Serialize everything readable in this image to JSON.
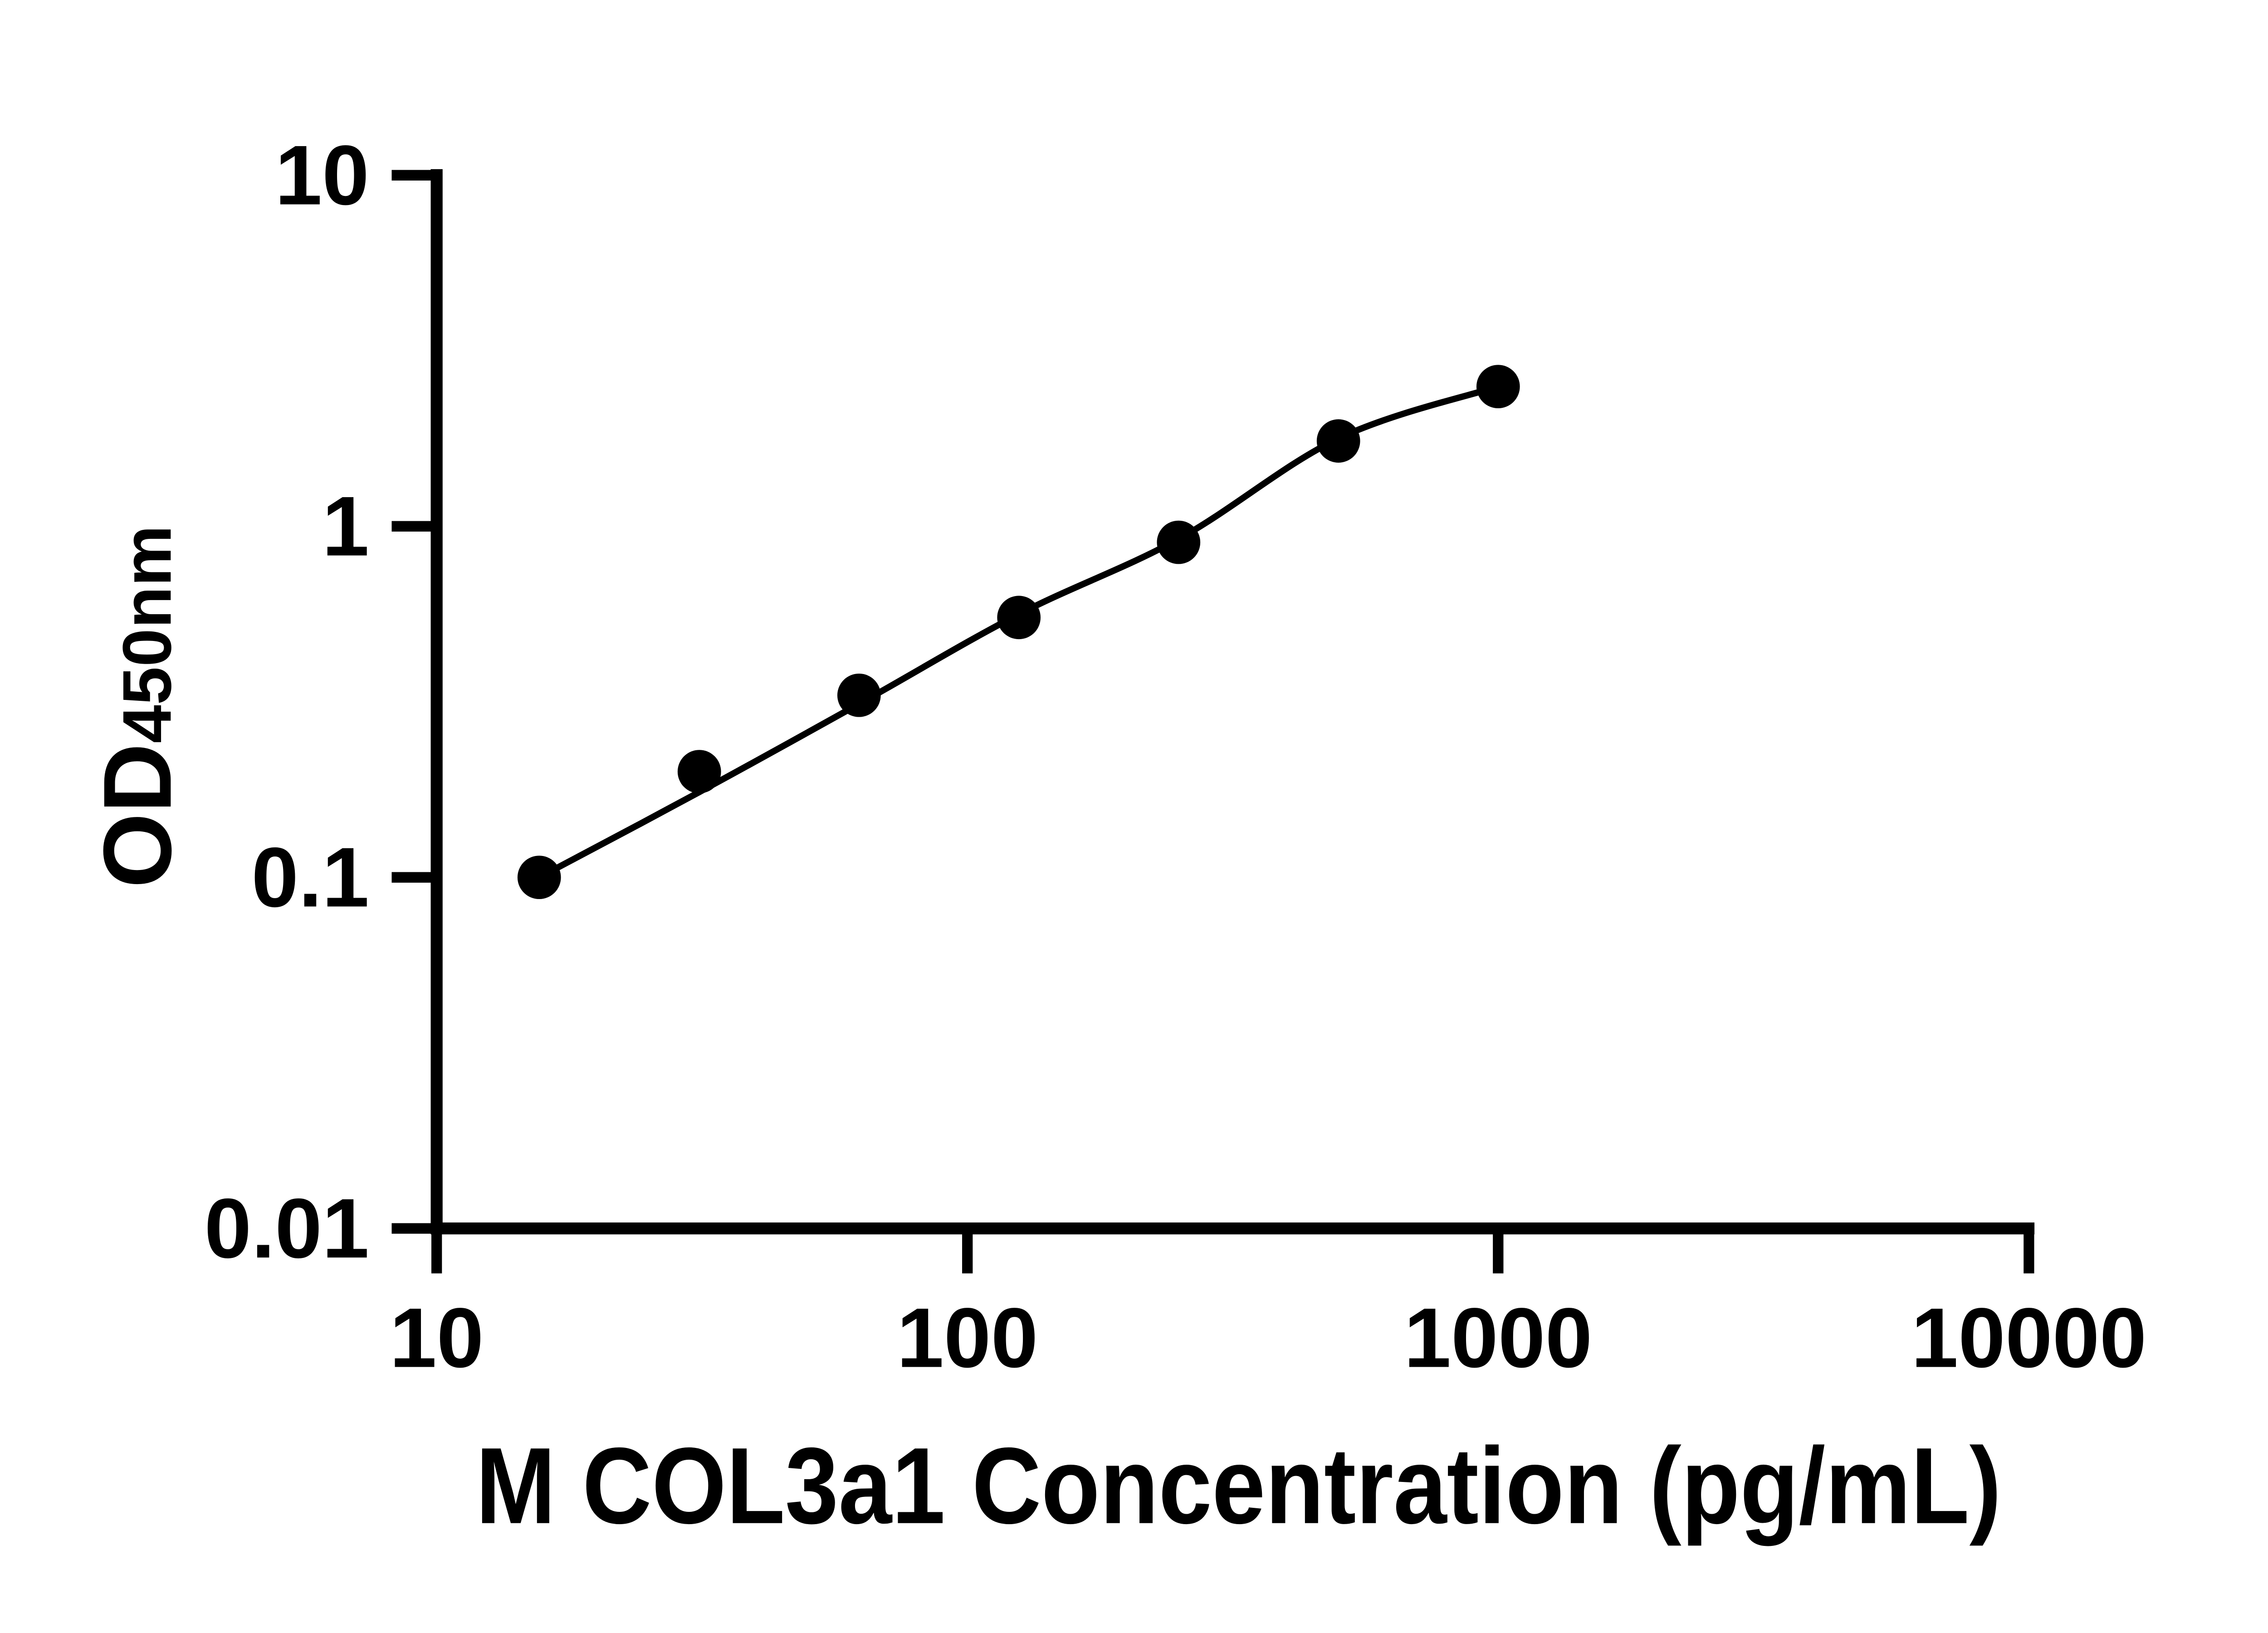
{
  "figure": {
    "background": "#ffffff",
    "ink": "#000000"
  },
  "chart_data": {
    "type": "scatter",
    "title": "",
    "xlabel": "M COL3a1 Concentration (pg/mL)",
    "ylabel_main": "OD",
    "ylabel_sub": "450nm",
    "x_scale": "log",
    "y_scale": "log",
    "xlim": [
      10,
      10000
    ],
    "ylim": [
      0.01,
      10
    ],
    "grid": "off",
    "legend": "none",
    "x_ticks": [
      {
        "value": 10,
        "label": "10"
      },
      {
        "value": 100,
        "label": "100"
      },
      {
        "value": 1000,
        "label": "1000"
      },
      {
        "value": 10000,
        "label": "10000"
      }
    ],
    "y_ticks": [
      {
        "value": 10,
        "label": "10"
      },
      {
        "value": 1,
        "label": "1"
      },
      {
        "value": 0.1,
        "label": "0.1"
      },
      {
        "value": 0.01,
        "label": "0.01"
      }
    ],
    "series": [
      {
        "name": "standard-curve-points",
        "marker": "circle",
        "color": "#000000",
        "points": [
          {
            "conc": 15.6,
            "od": 0.1
          },
          {
            "conc": 31.25,
            "od": 0.2
          },
          {
            "conc": 62.5,
            "od": 0.33
          },
          {
            "conc": 125,
            "od": 0.55
          },
          {
            "conc": 250,
            "od": 0.9
          },
          {
            "conc": 500,
            "od": 1.75
          },
          {
            "conc": 1000,
            "od": 2.5
          }
        ]
      }
    ],
    "trend_line": {
      "name": "fitted-curve",
      "color": "#000000",
      "od_fit": [
        0.1,
        0.175,
        0.312,
        0.562,
        0.92,
        1.78,
        2.5
      ]
    }
  }
}
